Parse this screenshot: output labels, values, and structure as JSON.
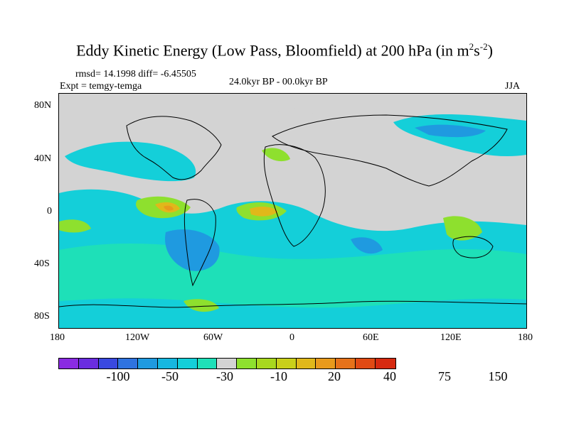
{
  "title": {
    "main": "Eddy Kinetic Energy (Low Pass, Bloomfield) at 200 hPa (in m",
    "sup1": "2",
    "mid": "s",
    "sup2": "-2",
    "end": ")"
  },
  "stats": "rmsd= 14.1998 diff= -6.45505",
  "expt": "Expt = temgy-temga",
  "center_label": "24.0kyr BP - 00.0kyr BP",
  "season": "JJA",
  "axes": {
    "y_ticks": [
      "80N",
      "40N",
      "0",
      "40S",
      "80S"
    ],
    "x_ticks": [
      "180",
      "120W",
      "60W",
      "0",
      "60E",
      "120E",
      "180"
    ]
  },
  "colorbar": {
    "colors": [
      "#8a2be2",
      "#6a2de0",
      "#3a49e0",
      "#2f73e0",
      "#1f9ae0",
      "#17b7e0",
      "#14cfd9",
      "#1ee0b8",
      "#d3d3d3",
      "#8ee02e",
      "#a8d81e",
      "#c9d01a",
      "#e0b81a",
      "#e89a1c",
      "#e6721a",
      "#e04a14",
      "#d62a10"
    ],
    "labels": [
      "-100",
      "-50",
      "-30",
      "-10",
      "20",
      "40",
      "75",
      "150"
    ]
  },
  "palette": {
    "gray": "#d3d3d3",
    "cyan": "#14cfd9",
    "teal": "#1ee0b8",
    "blue": "#1f9ae0",
    "green": "#8ee02e",
    "yellow": "#e0b81a",
    "orange": "#e89a1c"
  }
}
